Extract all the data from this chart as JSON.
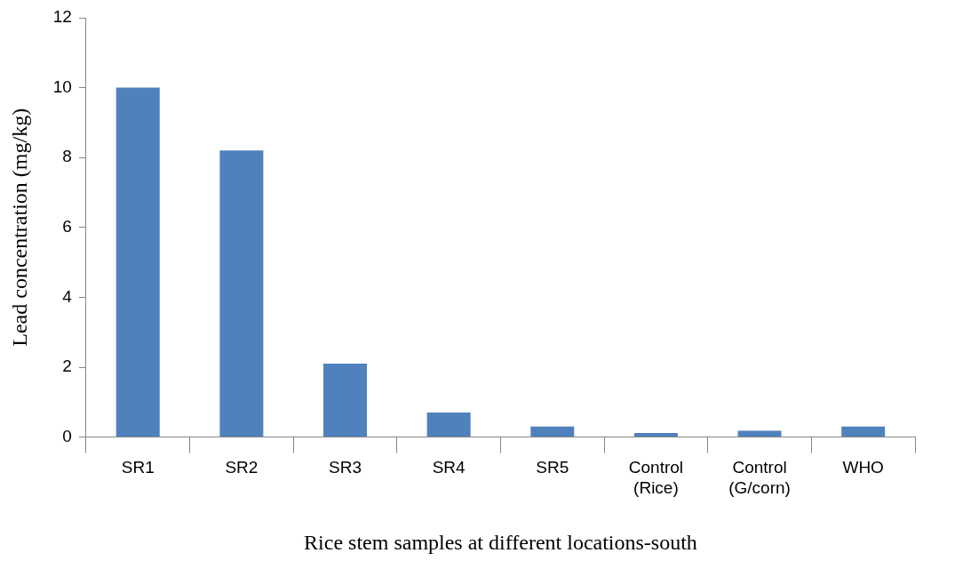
{
  "chart_data": {
    "type": "bar",
    "categories": [
      "SR1",
      "SR2",
      "SR3",
      "SR4",
      "SR5",
      "Control (Rice)",
      "Control (G/corn)",
      "WHO"
    ],
    "values": [
      10,
      8.2,
      2.1,
      0.7,
      0.3,
      0.12,
      0.18,
      0.3
    ],
    "color": "#4f81bd",
    "xlabel": "Rice stem samples at different locations-south",
    "ylabel": "Lead concentration (mg/kg)",
    "ylim": [
      0,
      12
    ],
    "yticks": [
      0,
      2,
      4,
      6,
      8,
      10,
      12
    ],
    "grid": false,
    "legend": false
  }
}
